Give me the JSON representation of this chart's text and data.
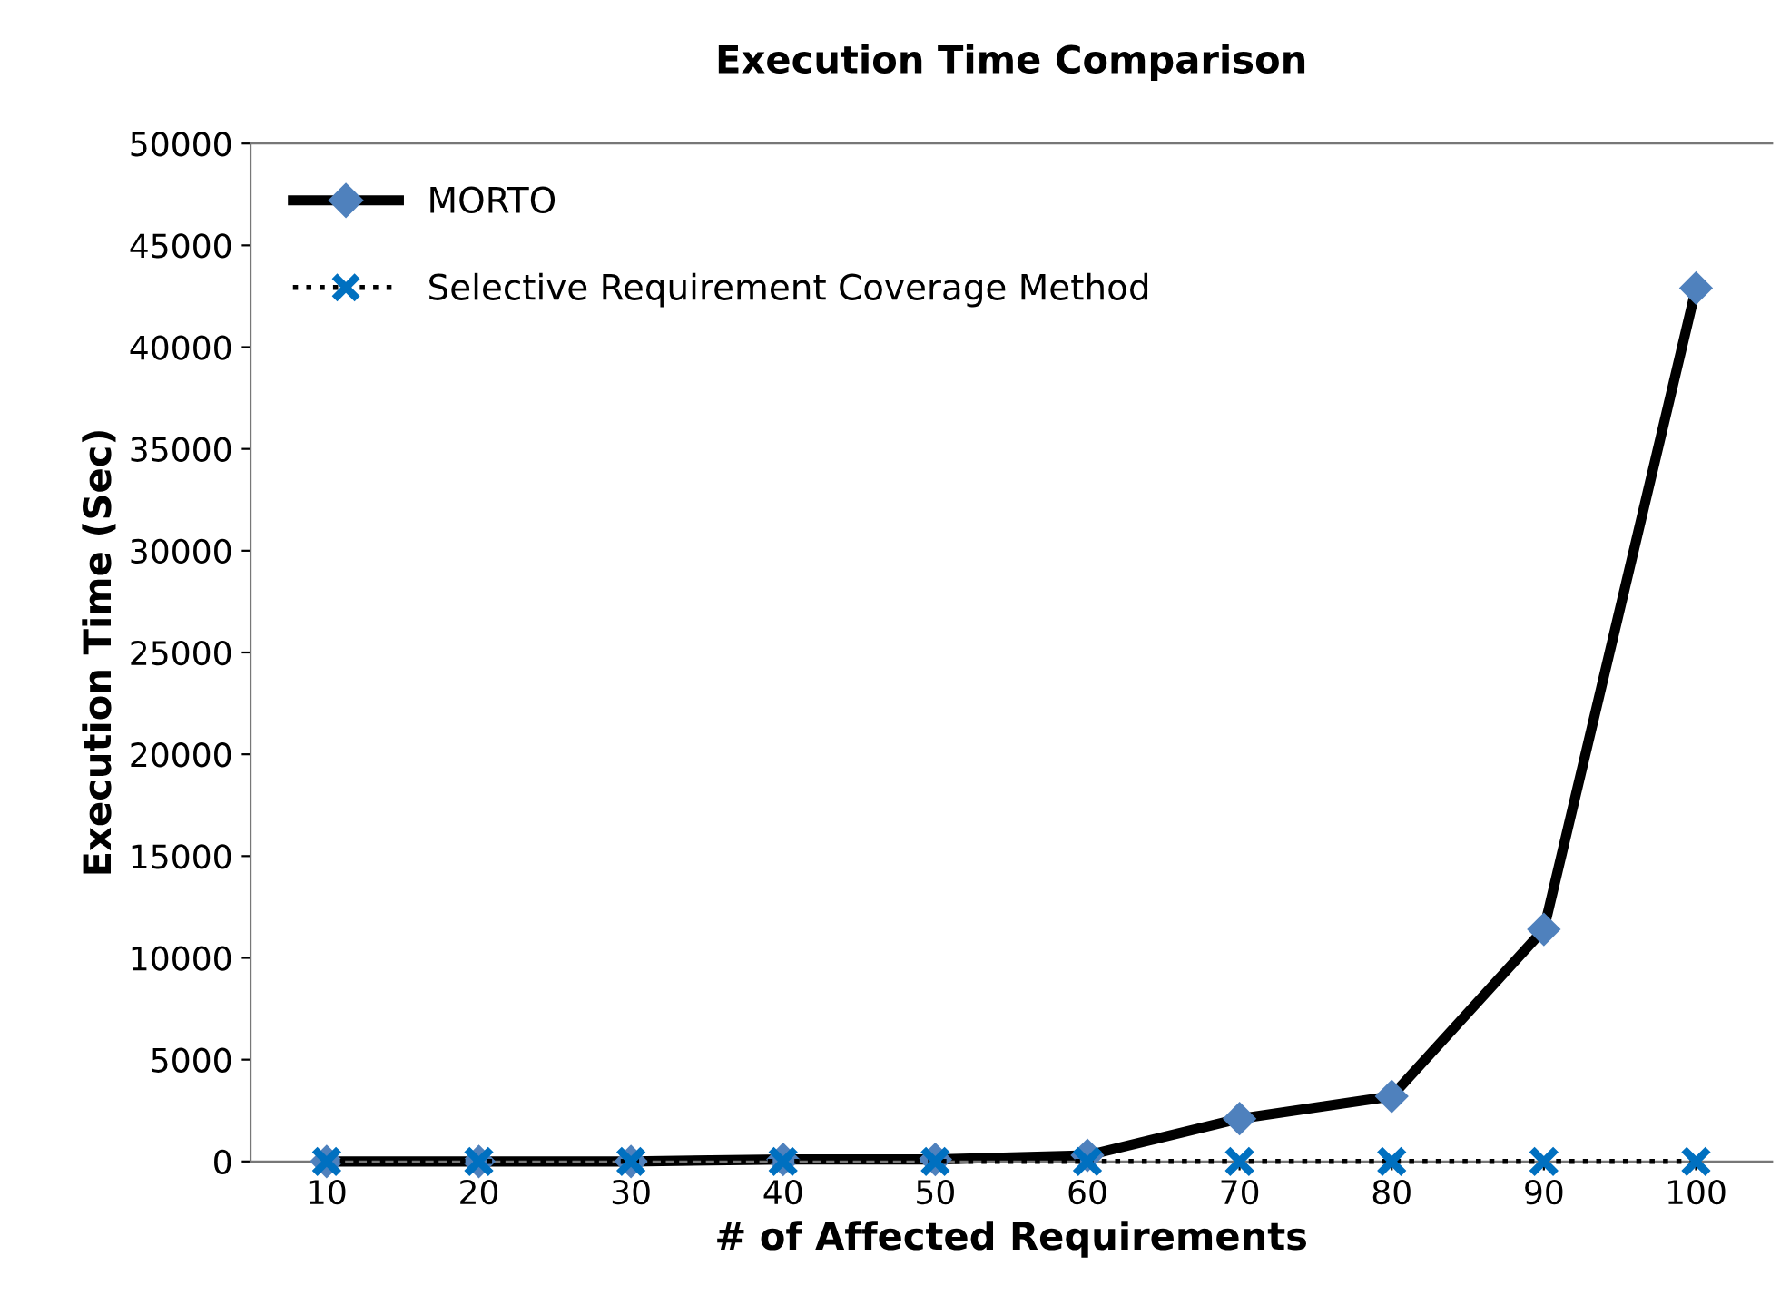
{
  "chart_data": {
    "type": "line",
    "title": "Execution Time Comparison",
    "xlabel": "# of Affected Requirements",
    "ylabel": "Execution Time (Sec)",
    "categories": [
      "10",
      "20",
      "30",
      "40",
      "50",
      "60",
      "70",
      "80",
      "90",
      "100"
    ],
    "series": [
      {
        "name": "MORTO",
        "color": "#000000",
        "colors": [
          "#4f81bd",
          "#4f81bd",
          "#4f81bd",
          "#4f81bd",
          "#4f81bd",
          "#4f81bd",
          "#4f81bd",
          "#4f81bd",
          "#4f81bd",
          "#4f81bd"
        ],
        "marker": "diamond",
        "line_style": "solid",
        "values": [
          0,
          0,
          0,
          100,
          100,
          300,
          2100,
          3200,
          11400,
          42900
        ]
      },
      {
        "name": "Selective Requirement Coverage Method",
        "color": "#000000",
        "colors": [
          "#0070c0",
          "#0070c0",
          "#0070c0",
          "#0070c0",
          "#0070c0",
          "#0070c0",
          "#0070c0",
          "#0070c0",
          "#0070c0",
          "#0070c0"
        ],
        "marker": "cross",
        "line_style": "dotted",
        "values": [
          0,
          0,
          0,
          0,
          0,
          0,
          0,
          0,
          0,
          0
        ]
      }
    ],
    "ylim": [
      0,
      50000
    ],
    "yticks": [
      0,
      5000,
      10000,
      15000,
      20000,
      25000,
      30000,
      35000,
      40000,
      45000,
      50000
    ],
    "grid": false,
    "legend": "top left"
  }
}
